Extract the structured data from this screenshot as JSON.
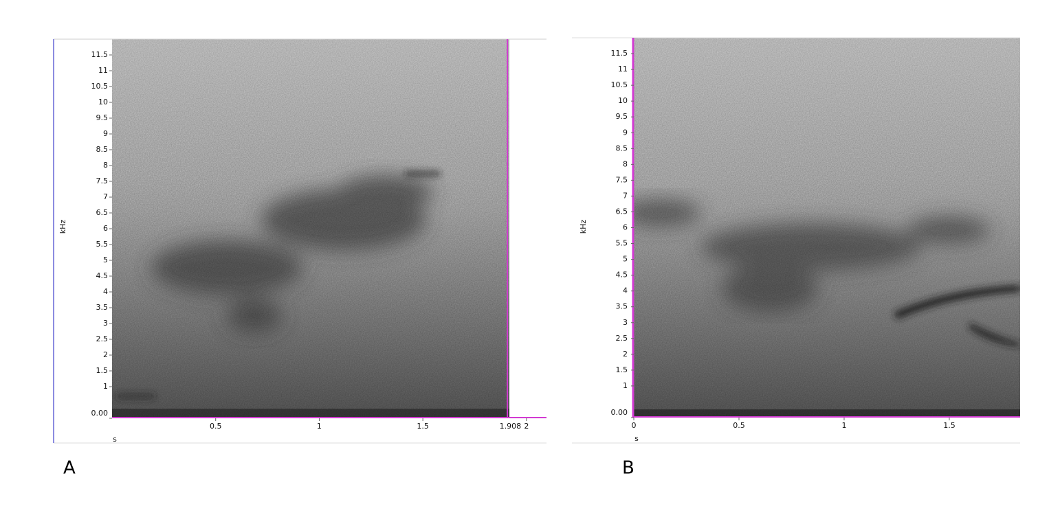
{
  "chart_data": [
    {
      "type": "spectrogram",
      "panel_label": "A",
      "ylabel": "kHz",
      "xlabel": "s",
      "xlim": [
        0,
        2.1
      ],
      "ylim": [
        0,
        12
      ],
      "xticks": [
        0.5,
        1,
        1.5,
        2
      ],
      "yticks": [
        {
          "value": 0,
          "label": "0.00"
        },
        1,
        1.5,
        2,
        2.5,
        3,
        3.5,
        4,
        4.5,
        5,
        5.5,
        6,
        6.5,
        7,
        7.5,
        8,
        8.5,
        9,
        9.5,
        10,
        10.5,
        11,
        11.5
      ],
      "cursor": 1.908
    },
    {
      "type": "spectrogram",
      "panel_label": "B",
      "ylabel": "kHz",
      "xlabel": "s",
      "xlim": [
        0,
        1.84
      ],
      "ylim": [
        0,
        12
      ],
      "xticks": [
        0,
        0.5,
        1,
        1.5
      ],
      "yticks": [
        {
          "value": 0,
          "label": "0.00"
        },
        1,
        1.5,
        2,
        2.5,
        3,
        3.5,
        4,
        4.5,
        5,
        5.5,
        6,
        6.5,
        7,
        7.5,
        8,
        8.5,
        9,
        9.5,
        10,
        10.5,
        11,
        11.5
      ]
    }
  ]
}
